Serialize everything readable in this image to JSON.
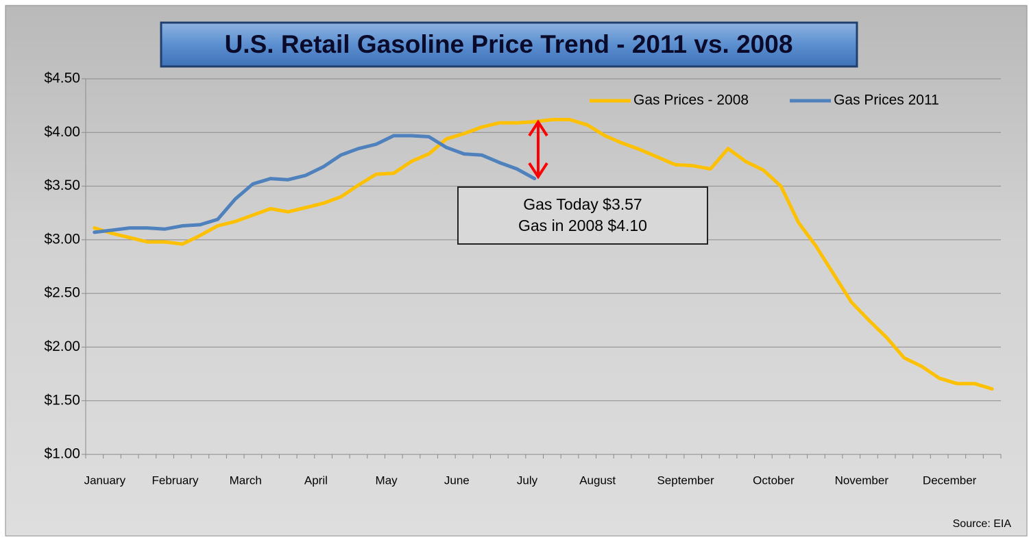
{
  "chart_data": {
    "type": "line",
    "title": "U.S. Retail Gasoline Price Trend - 2011 vs. 2008",
    "source": "Source: EIA",
    "categories": [
      "January",
      null,
      null,
      null,
      "February",
      null,
      null,
      null,
      "March",
      null,
      null,
      null,
      "April",
      null,
      null,
      null,
      "May",
      null,
      null,
      null,
      "June",
      null,
      null,
      null,
      "July",
      null,
      null,
      null,
      "August",
      null,
      null,
      null,
      null,
      "September",
      null,
      null,
      null,
      null,
      "October",
      null,
      null,
      null,
      null,
      "November",
      null,
      null,
      null,
      null,
      "December",
      null,
      null,
      null
    ],
    "series": [
      {
        "name": "Gas Prices - 2008",
        "color": "#ffc000",
        "values": [
          3.11,
          3.06,
          3.02,
          2.98,
          2.98,
          2.96,
          3.04,
          3.13,
          3.17,
          3.23,
          3.29,
          3.26,
          3.3,
          3.34,
          3.4,
          3.51,
          3.61,
          3.62,
          3.73,
          3.8,
          3.94,
          3.99,
          4.05,
          4.09,
          4.09,
          4.1,
          4.12,
          4.12,
          4.07,
          3.97,
          3.9,
          3.84,
          3.77,
          3.7,
          3.69,
          3.66,
          3.85,
          3.73,
          3.65,
          3.5,
          3.16,
          2.94,
          2.68,
          2.42,
          2.25,
          2.09,
          1.9,
          1.82,
          1.71,
          1.66,
          1.66,
          1.61
        ]
      },
      {
        "name": "Gas Prices 2011",
        "color": "#4f81bd",
        "values": [
          3.07,
          3.09,
          3.11,
          3.11,
          3.1,
          3.13,
          3.14,
          3.19,
          3.38,
          3.52,
          3.57,
          3.56,
          3.6,
          3.68,
          3.79,
          3.85,
          3.89,
          3.97,
          3.97,
          3.96,
          3.86,
          3.8,
          3.79,
          3.72,
          3.66,
          3.57,
          null,
          null,
          null,
          null,
          null,
          null,
          null,
          null,
          null,
          null,
          null,
          null,
          null,
          null,
          null,
          null,
          null,
          null,
          null,
          null,
          null,
          null,
          null,
          null,
          null,
          null
        ]
      }
    ],
    "ylim": [
      1.0,
      4.5
    ],
    "yticks": [
      {
        "value": 1.0,
        "label": "$1.00"
      },
      {
        "value": 1.5,
        "label": "$1.50"
      },
      {
        "value": 2.0,
        "label": "$2.00"
      },
      {
        "value": 2.5,
        "label": "$2.50"
      },
      {
        "value": 3.0,
        "label": "$3.00"
      },
      {
        "value": 3.5,
        "label": "$3.50"
      },
      {
        "value": 4.0,
        "label": "$4.00"
      },
      {
        "value": 4.5,
        "label": "$4.50"
      }
    ],
    "grid": true,
    "legend": "top-right",
    "annotations": [
      "Gas Today $3.57",
      "Gas in 2008 $4.10"
    ]
  }
}
